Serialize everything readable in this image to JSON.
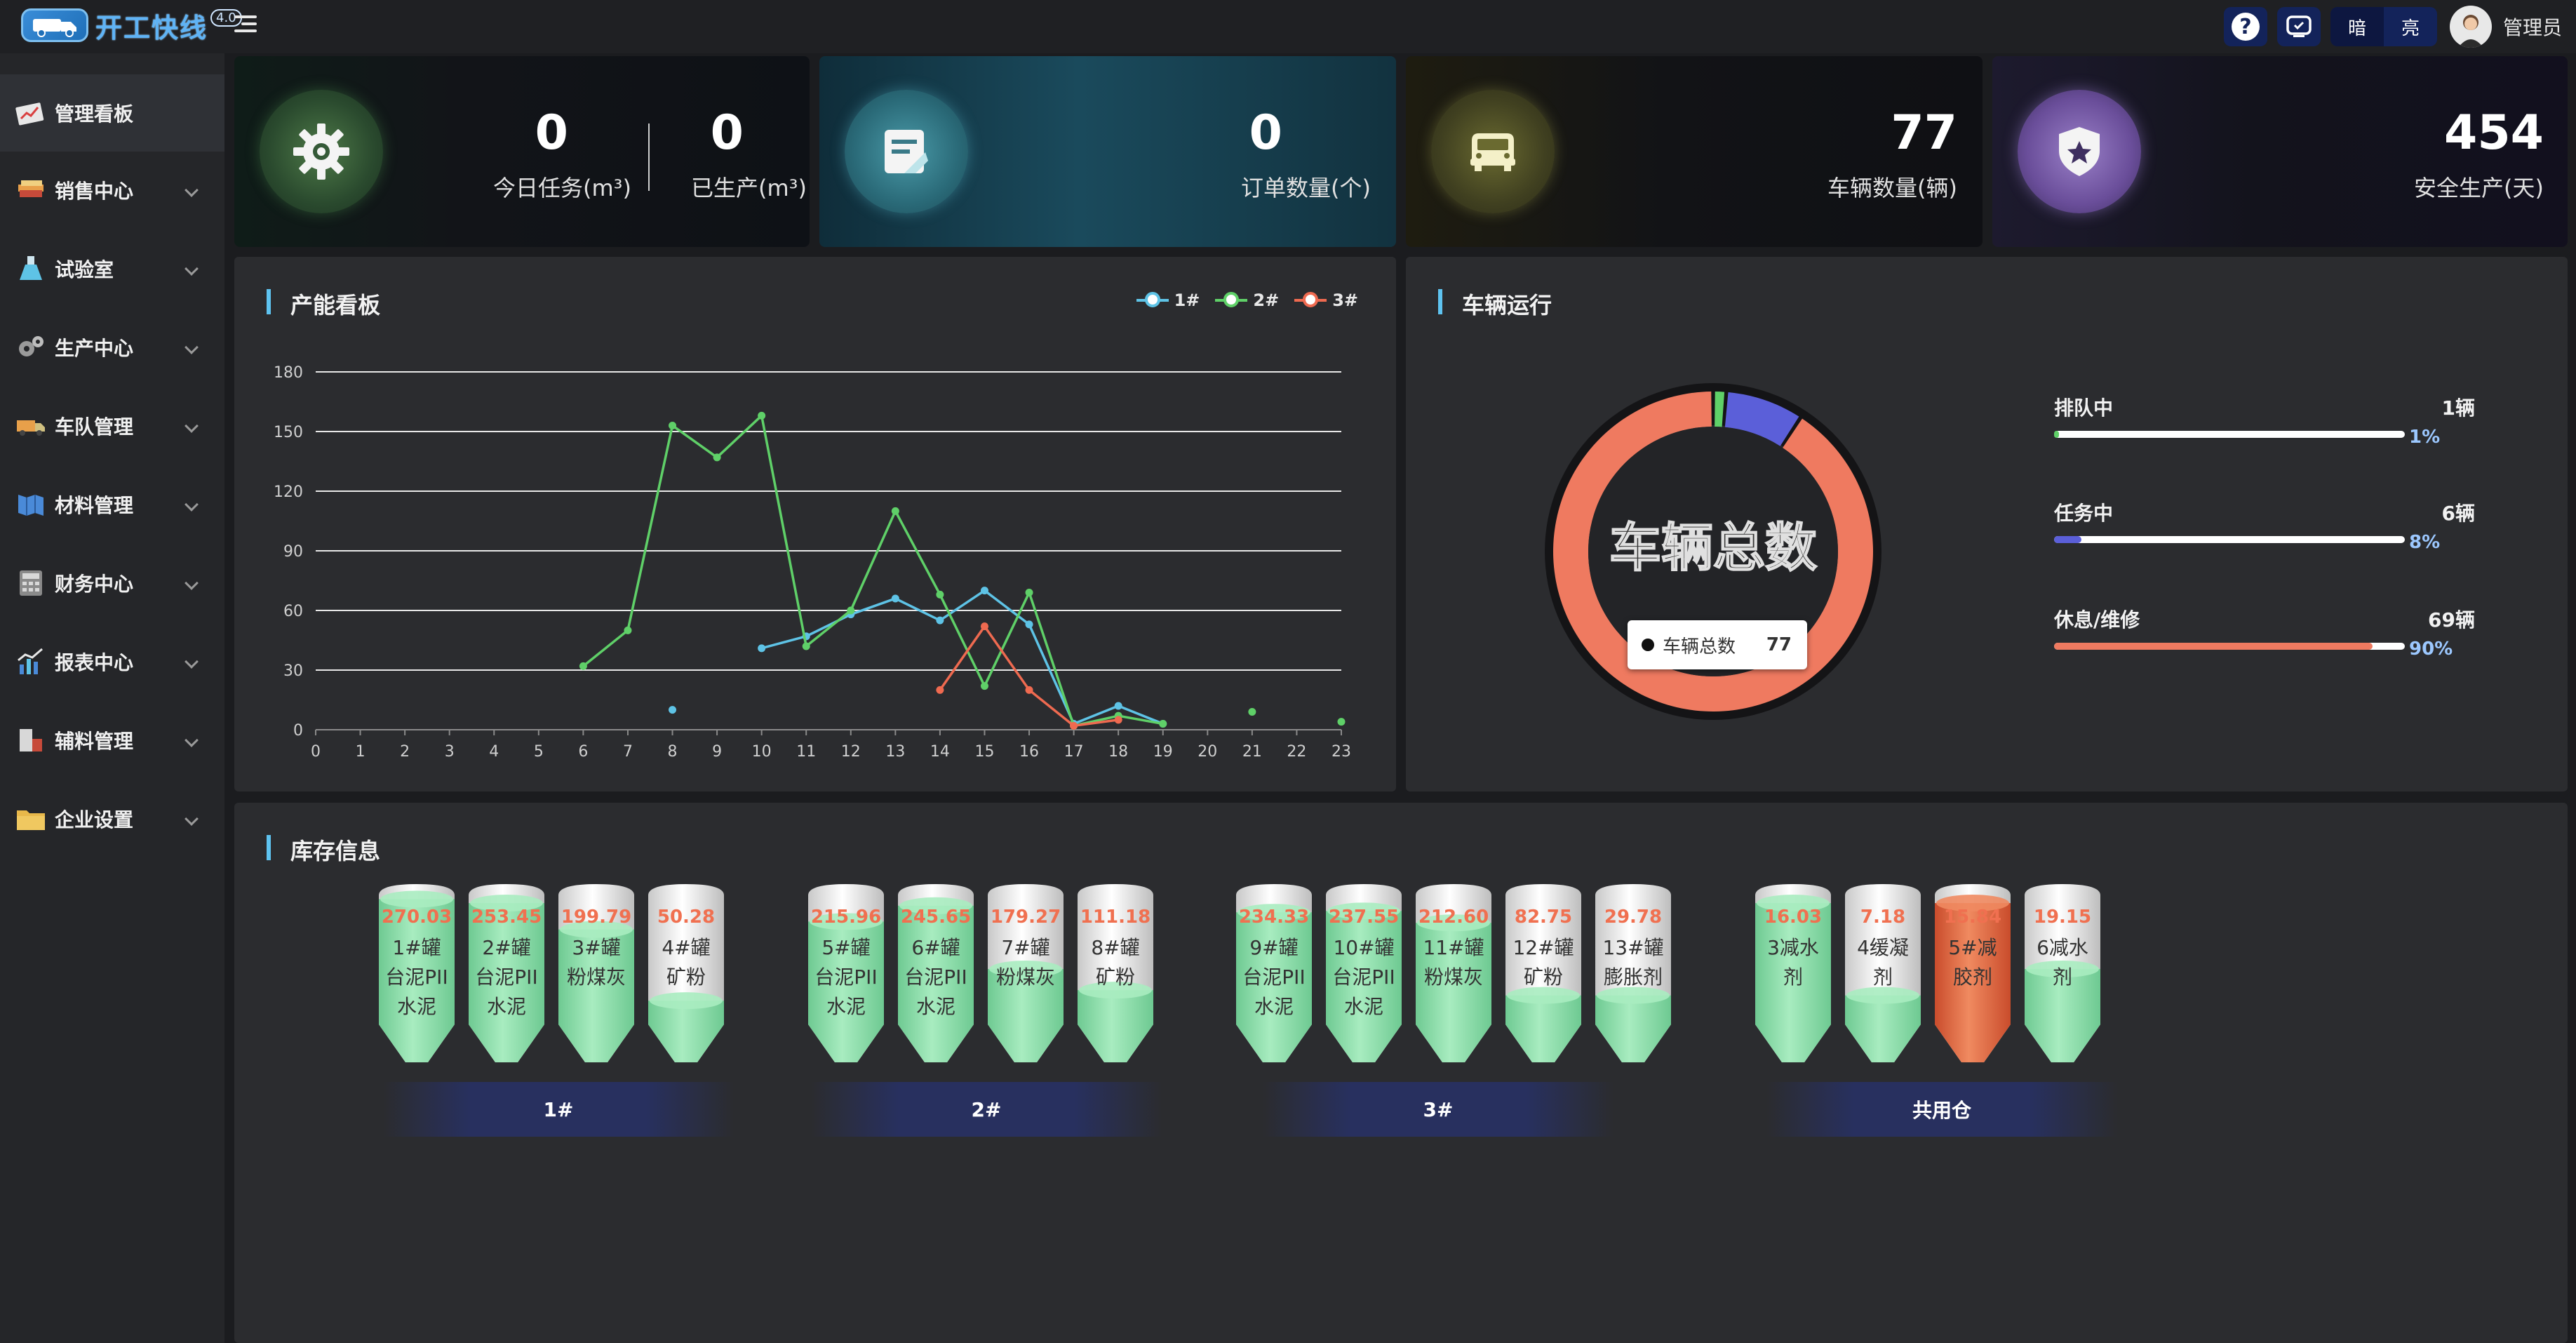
{
  "app": {
    "title": "开工快线",
    "version": "4.0"
  },
  "header": {
    "theme_dark": "暗",
    "theme_light": "亮",
    "user": "管理员",
    "help_icon": "help-icon",
    "screen_icon": "screen-icon"
  },
  "sidebar": {
    "items": [
      {
        "label": "管理看板",
        "icon": "dashboard-icon",
        "active": true
      },
      {
        "label": "销售中心",
        "icon": "sales-icon"
      },
      {
        "label": "试验室",
        "icon": "flask-icon"
      },
      {
        "label": "生产中心",
        "icon": "gears-icon"
      },
      {
        "label": "车队管理",
        "icon": "truck-icon"
      },
      {
        "label": "材料管理",
        "icon": "materials-icon"
      },
      {
        "label": "财务中心",
        "icon": "finance-icon"
      },
      {
        "label": "报表中心",
        "icon": "report-icon"
      },
      {
        "label": "辅料管理",
        "icon": "auxiliary-icon"
      },
      {
        "label": "企业设置",
        "icon": "folder-icon"
      }
    ]
  },
  "stats": {
    "today_tasks": {
      "value": "0",
      "label": "今日任务(m³)"
    },
    "produced": {
      "value": "0",
      "label": "已生产(m³)"
    },
    "orders": {
      "value": "0",
      "label": "订单数量(个)"
    },
    "vehicles": {
      "value": "77",
      "label": "车辆数量(辆)"
    },
    "safety_days": {
      "value": "454",
      "label": "安全生产(天)"
    }
  },
  "capacity_panel": {
    "title": "产能看板"
  },
  "chart_data": {
    "type": "line",
    "x": [
      0,
      1,
      2,
      3,
      4,
      5,
      6,
      7,
      8,
      9,
      10,
      11,
      12,
      13,
      14,
      15,
      16,
      17,
      18,
      19,
      20,
      21,
      22,
      23
    ],
    "ylim": [
      0,
      180
    ],
    "yticks": [
      0,
      30,
      60,
      90,
      120,
      150,
      180
    ],
    "grid": true,
    "legend": "top-right",
    "series": [
      {
        "name": "1#",
        "color": "#5ec3e6",
        "values": [
          null,
          null,
          null,
          null,
          null,
          null,
          null,
          null,
          10,
          null,
          41,
          47,
          58,
          66,
          55,
          70,
          53,
          3,
          12,
          3,
          null,
          null,
          null,
          null
        ]
      },
      {
        "name": "2#",
        "color": "#5fd068",
        "values": [
          null,
          null,
          null,
          null,
          null,
          null,
          32,
          50,
          153,
          137,
          158,
          42,
          60,
          110,
          68,
          22,
          69,
          2,
          7,
          3,
          null,
          9,
          null,
          4
        ]
      },
      {
        "name": "3#",
        "color": "#ef6a50",
        "values": [
          null,
          null,
          null,
          null,
          null,
          null,
          null,
          null,
          null,
          null,
          null,
          null,
          null,
          null,
          20,
          52,
          20,
          2,
          5,
          null,
          null,
          null,
          null,
          null
        ]
      }
    ]
  },
  "vehicle_panel": {
    "title": "车辆运行",
    "donut_center": "车辆总数",
    "tooltip_label": "车辆总数",
    "tooltip_value": "77",
    "items": [
      {
        "label": "排队中",
        "count": "1辆",
        "pct": "1%",
        "value": 1,
        "color": "#5fd068"
      },
      {
        "label": "任务中",
        "count": "6辆",
        "pct": "8%",
        "value": 6,
        "color": "#5b5fd9"
      },
      {
        "label": "休息/维修",
        "count": "69辆",
        "pct": "90%",
        "value": 69,
        "color": "#ef7a60"
      }
    ]
  },
  "inventory_panel": {
    "title": "库存信息",
    "groups": [
      {
        "label": "1#",
        "tanks": [
          {
            "value": "270.03",
            "name": "1#罐台泥PII水泥",
            "fill": 0.95,
            "color": "green"
          },
          {
            "value": "253.45",
            "name": "2#罐台泥PII水泥",
            "fill": 0.92,
            "color": "green"
          },
          {
            "value": "199.79",
            "name": "3#罐粉煤灰",
            "fill": 0.72,
            "color": "green"
          },
          {
            "value": "50.28",
            "name": "4#罐矿粉",
            "fill": 0.18,
            "color": "green"
          }
        ]
      },
      {
        "label": "2#",
        "tanks": [
          {
            "value": "215.96",
            "name": "5#罐台泥PII水泥",
            "fill": 0.78,
            "color": "green"
          },
          {
            "value": "245.65",
            "name": "6#罐台泥PII水泥",
            "fill": 0.9,
            "color": "green"
          },
          {
            "value": "179.27",
            "name": "7#罐粉煤灰",
            "fill": 0.42,
            "color": "green"
          },
          {
            "value": "111.18",
            "name": "8#罐矿粉",
            "fill": 0.26,
            "color": "green"
          }
        ]
      },
      {
        "label": "3#",
        "tanks": [
          {
            "value": "234.33",
            "name": "9#罐台泥PII水泥",
            "fill": 0.85,
            "color": "green"
          },
          {
            "value": "237.55",
            "name": "10#罐台泥PII水泥",
            "fill": 0.86,
            "color": "green"
          },
          {
            "value": "212.60",
            "name": "11#罐粉煤灰",
            "fill": 0.77,
            "color": "green"
          },
          {
            "value": "82.75",
            "name": "12#罐矿粉",
            "fill": 0.22,
            "color": "green"
          },
          {
            "value": "29.78",
            "name": "13#罐膨胀剂",
            "fill": 0.22,
            "color": "green"
          }
        ]
      },
      {
        "label": "共用仓",
        "tanks": [
          {
            "value": "16.03",
            "name": "3减水剂",
            "fill": 0.92,
            "color": "green"
          },
          {
            "value": "7.18",
            "name": "4缓凝剂",
            "fill": 0.22,
            "color": "green"
          },
          {
            "value": "15.84",
            "name": "5#减胶剂",
            "fill": 0.92,
            "color": "orange"
          },
          {
            "value": "19.15",
            "name": "6减水剂",
            "fill": 0.42,
            "color": "green"
          }
        ]
      }
    ]
  }
}
